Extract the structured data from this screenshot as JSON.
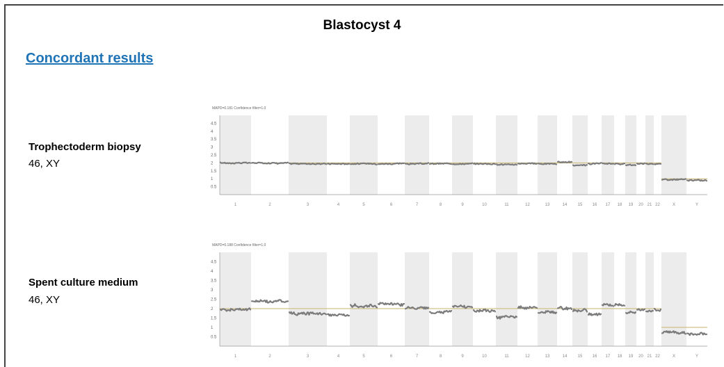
{
  "slide": {
    "title": "Blastocyst 4",
    "subtitle": "Concordant results"
  },
  "colors": {
    "heading_blue": "#1f74b6",
    "reference_line": "#c7b36e",
    "data_points": "#7b7b7b",
    "band_shade": "#ececec"
  },
  "chart_data": [
    {
      "type": "scatter",
      "sample_label": "Trophectoderm biopsy",
      "karyotype": "46, XY",
      "header": "MAPD=0.181 Confidence filter=1.0",
      "xlabel": "",
      "ylabel": "",
      "yticks": [
        4.5,
        4,
        3.5,
        3,
        2.5,
        2,
        1.5,
        1,
        0.5
      ],
      "ylim": [
        0,
        5
      ],
      "x_categories": [
        "1",
        "2",
        "3",
        "4",
        "5",
        "6",
        "7",
        "8",
        "9",
        "10",
        "11",
        "12",
        "13",
        "14",
        "15",
        "16",
        "17",
        "18",
        "19",
        "20",
        "21",
        "22",
        "X",
        "Y"
      ],
      "reference_copy_number": {
        "autosomes": 2,
        "X": 1,
        "Y": 1
      },
      "segments": [
        {
          "chrom": "1",
          "copy_number": 2.0
        },
        {
          "chrom": "2",
          "copy_number": 2.0
        },
        {
          "chrom": "3",
          "copy_number": 1.95
        },
        {
          "chrom": "4",
          "copy_number": 1.95
        },
        {
          "chrom": "5",
          "copy_number": 1.95
        },
        {
          "chrom": "6",
          "copy_number": 1.95
        },
        {
          "chrom": "7",
          "copy_number": 1.95
        },
        {
          "chrom": "8",
          "copy_number": 1.95
        },
        {
          "chrom": "9",
          "copy_number": 1.95
        },
        {
          "chrom": "10",
          "copy_number": 1.95
        },
        {
          "chrom": "11",
          "copy_number": 1.9
        },
        {
          "chrom": "12",
          "copy_number": 1.95
        },
        {
          "chrom": "13",
          "copy_number": 1.95
        },
        {
          "chrom": "14",
          "copy_number": 2.05
        },
        {
          "chrom": "15",
          "copy_number": 1.85
        },
        {
          "chrom": "16",
          "copy_number": 1.95
        },
        {
          "chrom": "17",
          "copy_number": 1.95
        },
        {
          "chrom": "18",
          "copy_number": 1.95
        },
        {
          "chrom": "19",
          "copy_number": 1.85
        },
        {
          "chrom": "20",
          "copy_number": 1.95
        },
        {
          "chrom": "21",
          "copy_number": 1.95
        },
        {
          "chrom": "22",
          "copy_number": 1.95
        },
        {
          "chrom": "X",
          "copy_number": 0.95
        },
        {
          "chrom": "Y",
          "copy_number": 0.9
        }
      ]
    },
    {
      "type": "scatter",
      "sample_label": "Spent culture medium",
      "karyotype": "46, XY",
      "header": "MAPD=0.188 Confidence filter=1.0",
      "xlabel": "",
      "ylabel": "",
      "yticks": [
        4.5,
        4,
        3.5,
        3,
        2.5,
        2,
        1.5,
        1,
        0.5
      ],
      "ylim": [
        0,
        5
      ],
      "x_categories": [
        "1",
        "2",
        "3",
        "4",
        "5",
        "6",
        "7",
        "8",
        "9",
        "10",
        "11",
        "12",
        "13",
        "14",
        "15",
        "16",
        "17",
        "18",
        "19",
        "20",
        "21",
        "22",
        "X",
        "Y"
      ],
      "reference_copy_number": {
        "autosomes": 2,
        "X": 1,
        "Y": 1
      },
      "segments": [
        {
          "chrom": "1",
          "copy_number": 1.95
        },
        {
          "chrom": "2",
          "copy_number": 2.4
        },
        {
          "chrom": "3",
          "copy_number": 1.75
        },
        {
          "chrom": "4",
          "copy_number": 1.65
        },
        {
          "chrom": "5",
          "copy_number": 2.15
        },
        {
          "chrom": "6",
          "copy_number": 2.25
        },
        {
          "chrom": "7",
          "copy_number": 2.05
        },
        {
          "chrom": "8",
          "copy_number": 1.8
        },
        {
          "chrom": "9",
          "copy_number": 2.1
        },
        {
          "chrom": "10",
          "copy_number": 1.9
        },
        {
          "chrom": "11",
          "copy_number": 1.55
        },
        {
          "chrom": "12",
          "copy_number": 2.05
        },
        {
          "chrom": "13",
          "copy_number": 1.8
        },
        {
          "chrom": "14",
          "copy_number": 2.0
        },
        {
          "chrom": "15",
          "copy_number": 1.9
        },
        {
          "chrom": "16",
          "copy_number": 1.7
        },
        {
          "chrom": "17",
          "copy_number": 2.2
        },
        {
          "chrom": "18",
          "copy_number": 2.2
        },
        {
          "chrom": "19",
          "copy_number": 1.8
        },
        {
          "chrom": "20",
          "copy_number": 1.95
        },
        {
          "chrom": "21",
          "copy_number": 1.85
        },
        {
          "chrom": "22",
          "copy_number": 1.95
        },
        {
          "chrom": "X",
          "copy_number": 0.75
        },
        {
          "chrom": "Y",
          "copy_number": 0.65
        }
      ]
    }
  ]
}
